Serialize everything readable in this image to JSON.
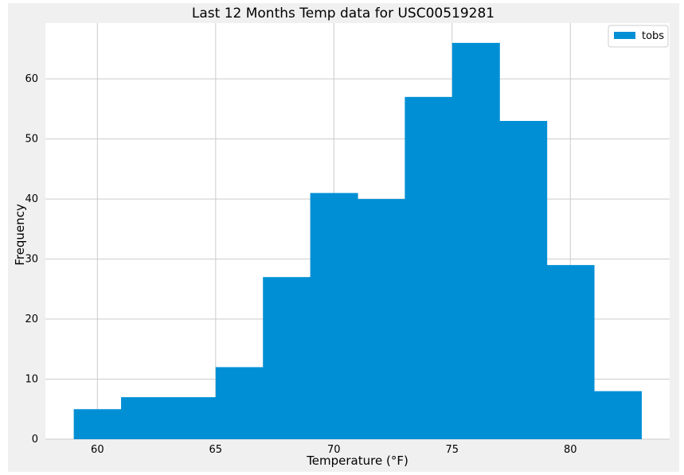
{
  "chart_data": {
    "type": "bar",
    "subtype": "histogram",
    "title": "Last 12 Months Temp data for USC00519281",
    "xlabel": "Temperature (°F)",
    "ylabel": "Frequency",
    "bins": [
      {
        "start": 59.0,
        "end": 61.0,
        "count": 5
      },
      {
        "start": 61.0,
        "end": 63.0,
        "count": 7
      },
      {
        "start": 63.0,
        "end": 65.0,
        "count": 7
      },
      {
        "start": 65.0,
        "end": 67.0,
        "count": 12
      },
      {
        "start": 67.0,
        "end": 69.0,
        "count": 27
      },
      {
        "start": 69.0,
        "end": 71.0,
        "count": 41
      },
      {
        "start": 71.0,
        "end": 73.0,
        "count": 40
      },
      {
        "start": 73.0,
        "end": 75.0,
        "count": 57
      },
      {
        "start": 75.0,
        "end": 77.0,
        "count": 66
      },
      {
        "start": 77.0,
        "end": 79.0,
        "count": 53
      },
      {
        "start": 79.0,
        "end": 81.0,
        "count": 29
      },
      {
        "start": 81.0,
        "end": 83.0,
        "count": 8
      }
    ],
    "series": [
      {
        "name": "tobs",
        "color": "#008fd5"
      }
    ],
    "xlim": [
      57.8,
      84.2
    ],
    "ylim": [
      0,
      69.3
    ],
    "xticks": [
      60,
      65,
      70,
      75,
      80
    ],
    "yticks": [
      0,
      10,
      20,
      30,
      40,
      50,
      60
    ],
    "xtick_labels": [
      "60",
      "65",
      "70",
      "75",
      "80"
    ],
    "ytick_labels": [
      "0",
      "10",
      "20",
      "30",
      "40",
      "50",
      "60"
    ],
    "grid": true,
    "legend_position": "top-right",
    "colors": {
      "figure_background": "#f0f0f0",
      "plot_background": "#ffffff",
      "bar": "#008fd5",
      "grid": "#cbcbcb"
    }
  }
}
